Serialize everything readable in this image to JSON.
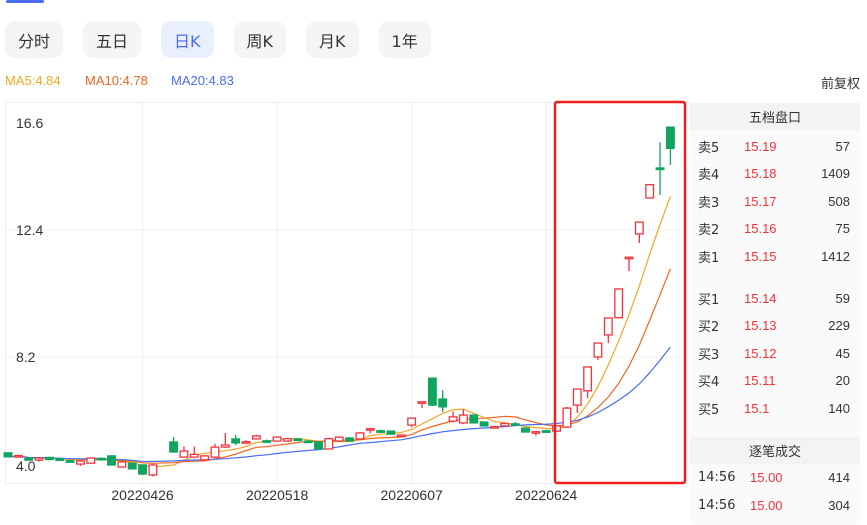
{
  "tabs": [
    {
      "label": "分时"
    },
    {
      "label": "五日"
    },
    {
      "label": "日K",
      "active": true
    },
    {
      "label": "周K"
    },
    {
      "label": "月K"
    },
    {
      "label": "1年"
    }
  ],
  "ma_legend": {
    "ma5": "MA5:4.84",
    "ma10": "MA10:4.78",
    "ma20": "MA20:4.83"
  },
  "adjust_label": "前复权",
  "colors": {
    "up": "#f5323c",
    "down": "#0fa55e",
    "ma5": "#f5a623",
    "ma10": "#f5641e",
    "ma20": "#4a6cf7",
    "accent": "#4a6cf7",
    "highlight_box": "#f21e1e"
  },
  "chart_data": {
    "type": "candlestick",
    "y_ticks": [
      "16.6",
      "12.4",
      "8.2",
      "4.0"
    ],
    "ylim": [
      4.0,
      16.6
    ],
    "x_ticks": [
      {
        "index": 13,
        "label": "20220426"
      },
      {
        "index": 26,
        "label": "20220518"
      },
      {
        "index": 39,
        "label": "20220607"
      },
      {
        "index": 52,
        "label": "20220624"
      }
    ],
    "ohlc": [
      [
        5.03,
        4.9,
        5.05,
        4.88
      ],
      [
        4.89,
        4.94,
        4.97,
        4.87
      ],
      [
        4.86,
        4.79,
        4.88,
        4.77
      ],
      [
        4.79,
        4.86,
        4.88,
        4.74
      ],
      [
        4.88,
        4.81,
        4.9,
        4.79
      ],
      [
        4.83,
        4.8,
        4.85,
        4.78
      ],
      [
        4.77,
        4.76,
        4.8,
        4.73
      ],
      [
        4.66,
        4.76,
        4.78,
        4.6
      ],
      [
        4.69,
        4.86,
        4.88,
        4.67
      ],
      [
        4.85,
        4.84,
        4.87,
        4.82
      ],
      [
        4.93,
        4.63,
        4.95,
        4.61
      ],
      [
        4.56,
        4.73,
        4.75,
        4.54
      ],
      [
        4.69,
        4.5,
        4.71,
        4.48
      ],
      [
        4.63,
        4.33,
        4.65,
        4.3
      ],
      [
        4.3,
        4.63,
        4.66,
        4.25
      ],
      null,
      [
        5.39,
        5.06,
        5.55,
        5.04
      ],
      [
        4.89,
        5.09,
        5.24,
        4.87
      ],
      [
        4.89,
        4.98,
        5.24,
        4.87
      ],
      [
        4.8,
        4.93,
        4.95,
        4.78
      ],
      [
        4.89,
        5.22,
        5.33,
        4.87
      ],
      [
        5.22,
        5.29,
        5.69,
        5.2
      ],
      [
        5.49,
        5.36,
        5.62,
        5.28
      ],
      [
        5.38,
        5.4,
        5.45,
        5.35
      ],
      [
        5.49,
        5.59,
        5.63,
        5.47
      ],
      [
        5.43,
        5.42,
        5.47,
        5.38
      ],
      [
        5.42,
        5.55,
        5.58,
        5.4
      ],
      [
        5.42,
        5.5,
        5.53,
        5.4
      ],
      [
        5.49,
        5.45,
        5.52,
        5.43
      ],
      [
        5.42,
        5.39,
        5.45,
        5.37
      ],
      [
        5.39,
        5.16,
        5.41,
        5.14
      ],
      [
        5.16,
        5.5,
        5.53,
        5.14
      ],
      [
        5.42,
        5.55,
        5.58,
        5.4
      ],
      [
        5.52,
        5.42,
        5.55,
        5.4
      ],
      [
        5.49,
        5.69,
        5.72,
        5.47
      ],
      [
        5.82,
        5.83,
        5.84,
        5.68
      ],
      [
        5.76,
        5.75,
        5.8,
        5.72
      ],
      [
        5.75,
        5.65,
        5.77,
        5.63
      ],
      [
        5.6,
        5.62,
        5.64,
        5.55
      ],
      [
        5.95,
        6.18,
        6.2,
        5.88
      ],
      [
        6.71,
        6.72,
        6.73,
        6.51
      ],
      [
        7.5,
        6.61,
        7.52,
        6.58
      ],
      [
        6.81,
        6.55,
        7.1,
        6.38
      ],
      [
        6.08,
        6.22,
        6.4,
        6.04
      ],
      [
        6.02,
        6.28,
        6.48,
        5.98
      ],
      [
        6.28,
        6.02,
        6.3,
        6.0
      ],
      [
        6.05,
        5.92,
        6.07,
        5.9
      ],
      [
        5.88,
        5.9,
        5.92,
        5.86
      ],
      [
        5.92,
        6.0,
        6.02,
        5.9
      ],
      [
        5.99,
        5.97,
        6.05,
        5.95
      ],
      [
        5.85,
        5.72,
        5.87,
        5.7
      ],
      [
        5.72,
        5.73,
        5.74,
        5.6
      ],
      [
        5.76,
        5.75,
        5.8,
        5.72
      ],
      [
        5.75,
        5.92,
        5.94,
        5.73
      ],
      [
        5.88,
        6.51,
        6.55,
        5.86
      ],
      [
        6.61,
        7.14,
        7.16,
        6.35
      ],
      [
        7.08,
        7.87,
        7.89,
        6.84
      ],
      [
        8.2,
        8.66,
        8.68,
        8.1
      ],
      [
        8.93,
        9.49,
        9.5,
        8.66
      ],
      [
        9.5,
        10.45,
        10.46,
        9.49
      ],
      [
        11.5,
        11.5,
        11.52,
        11.04
      ],
      [
        12.27,
        12.66,
        12.68,
        11.97
      ],
      [
        13.46,
        13.9,
        13.91,
        13.45
      ],
      [
        14.45,
        14.4,
        15.3,
        13.56
      ],
      [
        15.8,
        15.1,
        15.82,
        14.55
      ]
    ],
    "ma_periods": [
      5,
      10,
      20
    ],
    "grid": true
  },
  "order_book": {
    "title": "五档盘口",
    "asks": [
      {
        "label": "卖5",
        "price": "15.19",
        "volume": "57"
      },
      {
        "label": "卖4",
        "price": "15.18",
        "volume": "1409"
      },
      {
        "label": "卖3",
        "price": "15.17",
        "volume": "508"
      },
      {
        "label": "卖2",
        "price": "15.16",
        "volume": "75"
      },
      {
        "label": "卖1",
        "price": "15.15",
        "volume": "1412"
      }
    ],
    "bids": [
      {
        "label": "买1",
        "price": "15.14",
        "volume": "59"
      },
      {
        "label": "买2",
        "price": "15.13",
        "volume": "229"
      },
      {
        "label": "买3",
        "price": "15.12",
        "volume": "45"
      },
      {
        "label": "买4",
        "price": "15.11",
        "volume": "20"
      },
      {
        "label": "买5",
        "price": "15.1",
        "volume": "140"
      }
    ]
  },
  "trades": {
    "title": "逐笔成交",
    "items": [
      {
        "time": "14:56",
        "price": "15.00",
        "volume": "414"
      },
      {
        "time": "14:56",
        "price": "15.00",
        "volume": "304"
      }
    ]
  }
}
